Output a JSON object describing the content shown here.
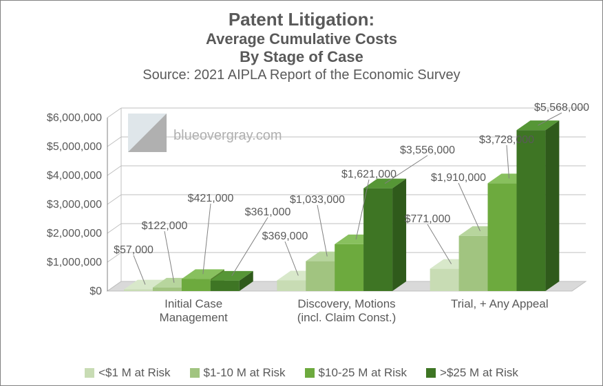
{
  "title_main": "Patent Litigation:",
  "title_sub1": "Average Cumulative Costs",
  "title_sub2": "By Stage of Case",
  "source": "Source: 2021 AIPLA Report of the Economic Survey",
  "watermark": "blueovergray.com",
  "chart": {
    "type": "grouped-bar-3d",
    "ylim": [
      0,
      6000000
    ],
    "ytick_step": 1000000,
    "yticks": [
      "$0",
      "$1,000,000",
      "$2,000,000",
      "$3,000,000",
      "$4,000,000",
      "$5,000,000",
      "$6,000,000"
    ],
    "categories": [
      "Initial Case\nManagement",
      "Discovery, Motions\n(incl. Claim Const.)",
      "Trial, + Any Appeal"
    ],
    "series": [
      {
        "label": "<$1 M at Risk",
        "color_front": "#c8dcb4",
        "color_side": "#a6c08e",
        "color_top": "#d8e8ca",
        "values": [
          57000,
          369000,
          771000
        ]
      },
      {
        "label": "$1-10 M at Risk",
        "color_front": "#a1c480",
        "color_side": "#7ea160",
        "color_top": "#b7d59d",
        "values": [
          122000,
          1033000,
          1910000
        ]
      },
      {
        "label": "$10-25 M at Risk",
        "color_front": "#6daa3e",
        "color_side": "#54852e",
        "color_top": "#88c05e",
        "values": [
          421000,
          1621000,
          3728000
        ]
      },
      {
        "label": ">$25 M at Risk",
        "color_front": "#3e7524",
        "color_side": "#2f5a1b",
        "color_top": "#569636",
        "values": [
          361000,
          3556000,
          5568000
        ]
      }
    ],
    "data_labels": [
      [
        "$57,000",
        "$122,000",
        "$421,000",
        "$361,000"
      ],
      [
        "$369,000",
        "$1,033,000",
        "$1,621,000",
        "$3,556,000"
      ],
      [
        "$771,000",
        "$1,910,000",
        "$3,728,000",
        "$5,568,000"
      ]
    ],
    "axis_color": "#808080",
    "grid_color": "#bfbfbf",
    "floor_color": "#d9d9d9",
    "backwall_color": "#ffffff"
  }
}
